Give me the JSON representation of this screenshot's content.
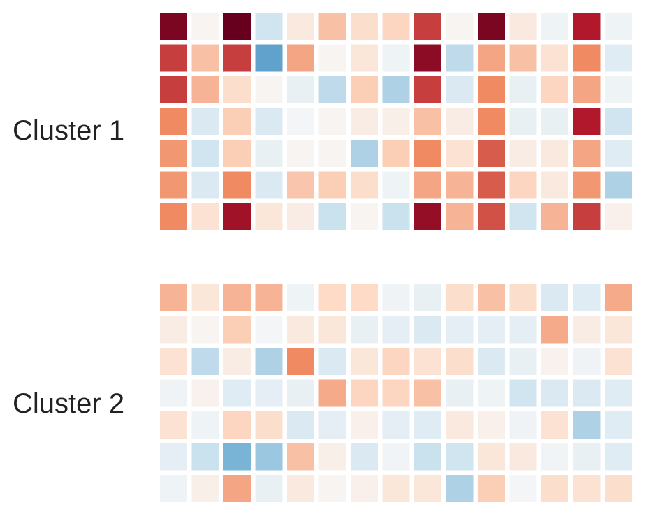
{
  "chart_data": {
    "type": "heatmap",
    "colormap": "diverging red-white-blue (RdBu reversed)",
    "value_range": [
      -1,
      1
    ],
    "grid": false,
    "legend": "none",
    "clusters": [
      {
        "label": "Cluster 1",
        "rows": 7,
        "cols": 15,
        "values": [
          [
            0.95,
            0.02,
            1.0,
            -0.2,
            0.1,
            0.3,
            0.18,
            0.22,
            0.7,
            0.02,
            0.95,
            0.1,
            -0.05,
            0.8,
            -0.05
          ],
          [
            0.7,
            0.3,
            0.7,
            -0.55,
            0.4,
            0.02,
            0.12,
            -0.05,
            0.9,
            -0.25,
            0.4,
            0.3,
            0.15,
            0.5,
            -0.12
          ],
          [
            0.7,
            0.35,
            0.18,
            0.02,
            -0.08,
            -0.25,
            0.25,
            -0.3,
            0.7,
            -0.15,
            0.5,
            -0.08,
            0.22,
            0.4,
            -0.05
          ],
          [
            0.5,
            -0.15,
            0.25,
            -0.15,
            -0.02,
            0.02,
            0.08,
            0.06,
            0.3,
            0.08,
            0.5,
            -0.08,
            -0.08,
            0.8,
            -0.2
          ],
          [
            0.45,
            -0.2,
            0.25,
            -0.08,
            0.02,
            0.02,
            -0.3,
            0.25,
            0.5,
            0.15,
            0.62,
            0.08,
            0.1,
            0.4,
            -0.12
          ],
          [
            0.45,
            -0.15,
            0.5,
            -0.15,
            0.28,
            0.25,
            0.18,
            -0.05,
            0.4,
            0.35,
            0.62,
            0.22,
            0.1,
            0.45,
            -0.3
          ],
          [
            0.5,
            0.15,
            0.85,
            0.12,
            0.08,
            -0.22,
            0.02,
            -0.22,
            0.88,
            0.35,
            0.65,
            -0.2,
            0.35,
            0.7,
            0.05
          ]
        ]
      },
      {
        "label": "Cluster 2",
        "rows": 7,
        "cols": 15,
        "values": [
          [
            0.35,
            0.12,
            0.35,
            0.35,
            -0.05,
            0.2,
            0.2,
            -0.04,
            -0.08,
            0.18,
            0.3,
            0.18,
            -0.15,
            -0.12,
            0.38
          ],
          [
            0.08,
            0.02,
            0.25,
            -0.02,
            0.1,
            0.12,
            -0.08,
            -0.1,
            -0.15,
            -0.1,
            -0.1,
            -0.1,
            0.38,
            0.08,
            0.12
          ],
          [
            0.15,
            -0.25,
            0.08,
            -0.3,
            0.5,
            -0.15,
            0.12,
            0.22,
            0.15,
            0.18,
            -0.15,
            -0.08,
            0.04,
            -0.04,
            0.15
          ],
          [
            -0.04,
            0.04,
            -0.12,
            -0.1,
            -0.08,
            0.38,
            0.22,
            0.22,
            0.3,
            -0.08,
            -0.05,
            -0.2,
            -0.15,
            -0.15,
            -0.12
          ],
          [
            0.15,
            -0.05,
            0.22,
            0.18,
            -0.15,
            -0.1,
            0.05,
            -0.1,
            -0.12,
            0.1,
            0.05,
            -0.04,
            0.15,
            -0.3,
            -0.12
          ],
          [
            -0.1,
            -0.22,
            -0.45,
            -0.35,
            0.3,
            0.06,
            -0.15,
            -0.03,
            -0.22,
            -0.2,
            0.12,
            0.1,
            -0.03,
            -0.08,
            -0.12
          ],
          [
            -0.05,
            0.06,
            0.4,
            -0.08,
            0.1,
            0.02,
            0.05,
            0.12,
            0.12,
            -0.3,
            0.25,
            -0.02,
            0.18,
            0.15,
            0.18
          ]
        ]
      }
    ]
  }
}
